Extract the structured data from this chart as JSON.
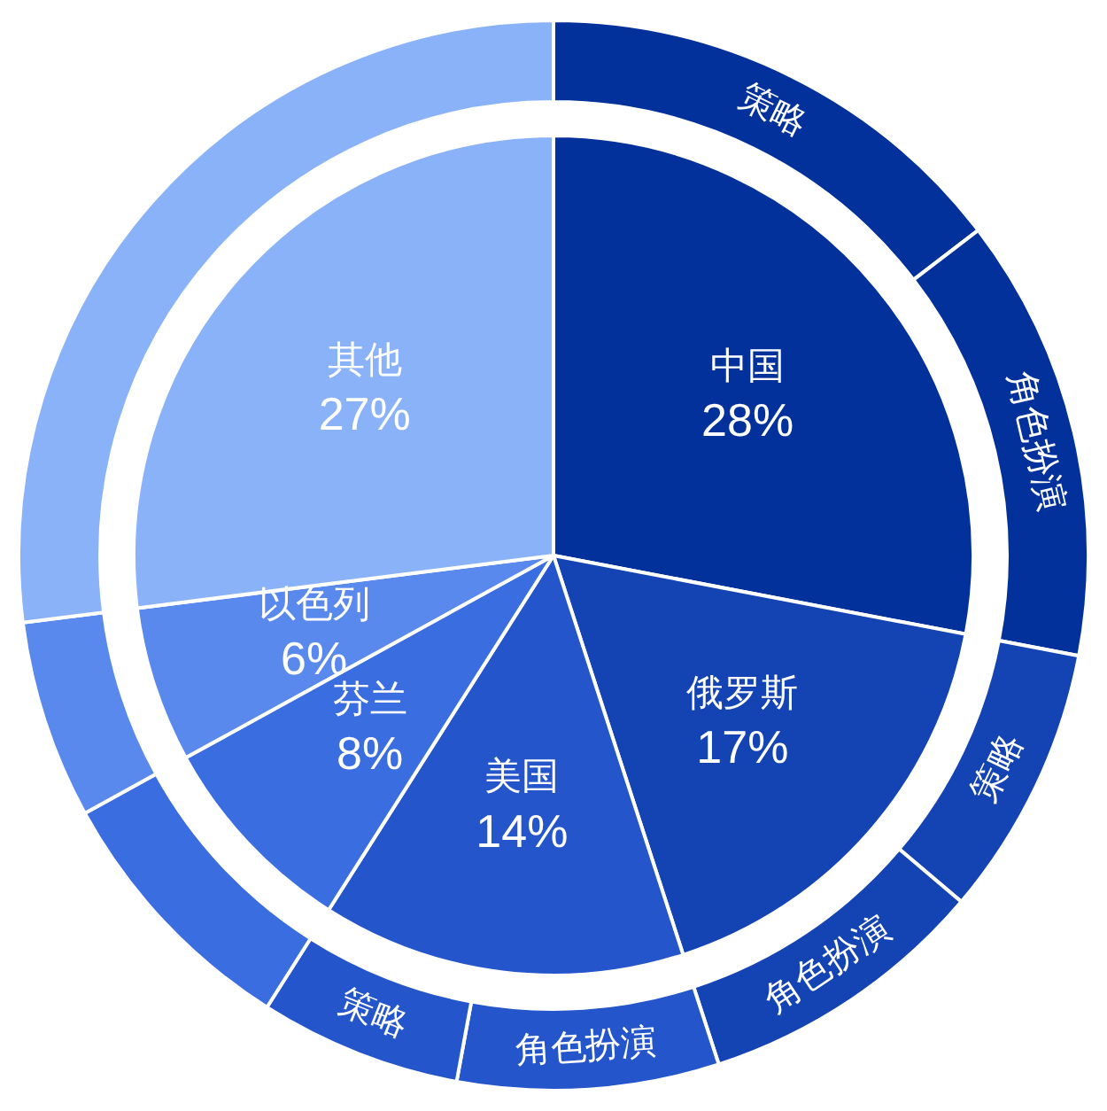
{
  "chart_data": [
    {
      "type": "pie",
      "categories": [
        "中国",
        "俄罗斯",
        "美国",
        "芬兰",
        "以色列",
        "其他"
      ],
      "values": [
        28,
        17,
        14,
        8,
        6,
        27
      ],
      "value_labels": [
        "28%",
        "17%",
        "14%",
        "8%",
        "6%",
        "27%"
      ],
      "colors": [
        "#03319b",
        "#1443b3",
        "#2455cb",
        "#3a6ddf",
        "#5a89ee",
        "#8ab2f9"
      ]
    },
    {
      "type": "donut",
      "categories": [
        "策略",
        "角色扮演",
        "策略",
        "角色扮演",
        "角色扮演",
        "策略",
        null,
        null,
        null
      ],
      "values": [
        14.6,
        13.4,
        8.2,
        8.8,
        7.9,
        6.1,
        8,
        6,
        27
      ],
      "colors": [
        "#03319b",
        "#03319b",
        "#1443b3",
        "#1443b3",
        "#2455cb",
        "#2455cb",
        "#3a6ddf",
        "#5a89ee",
        "#8ab2f9"
      ]
    }
  ]
}
